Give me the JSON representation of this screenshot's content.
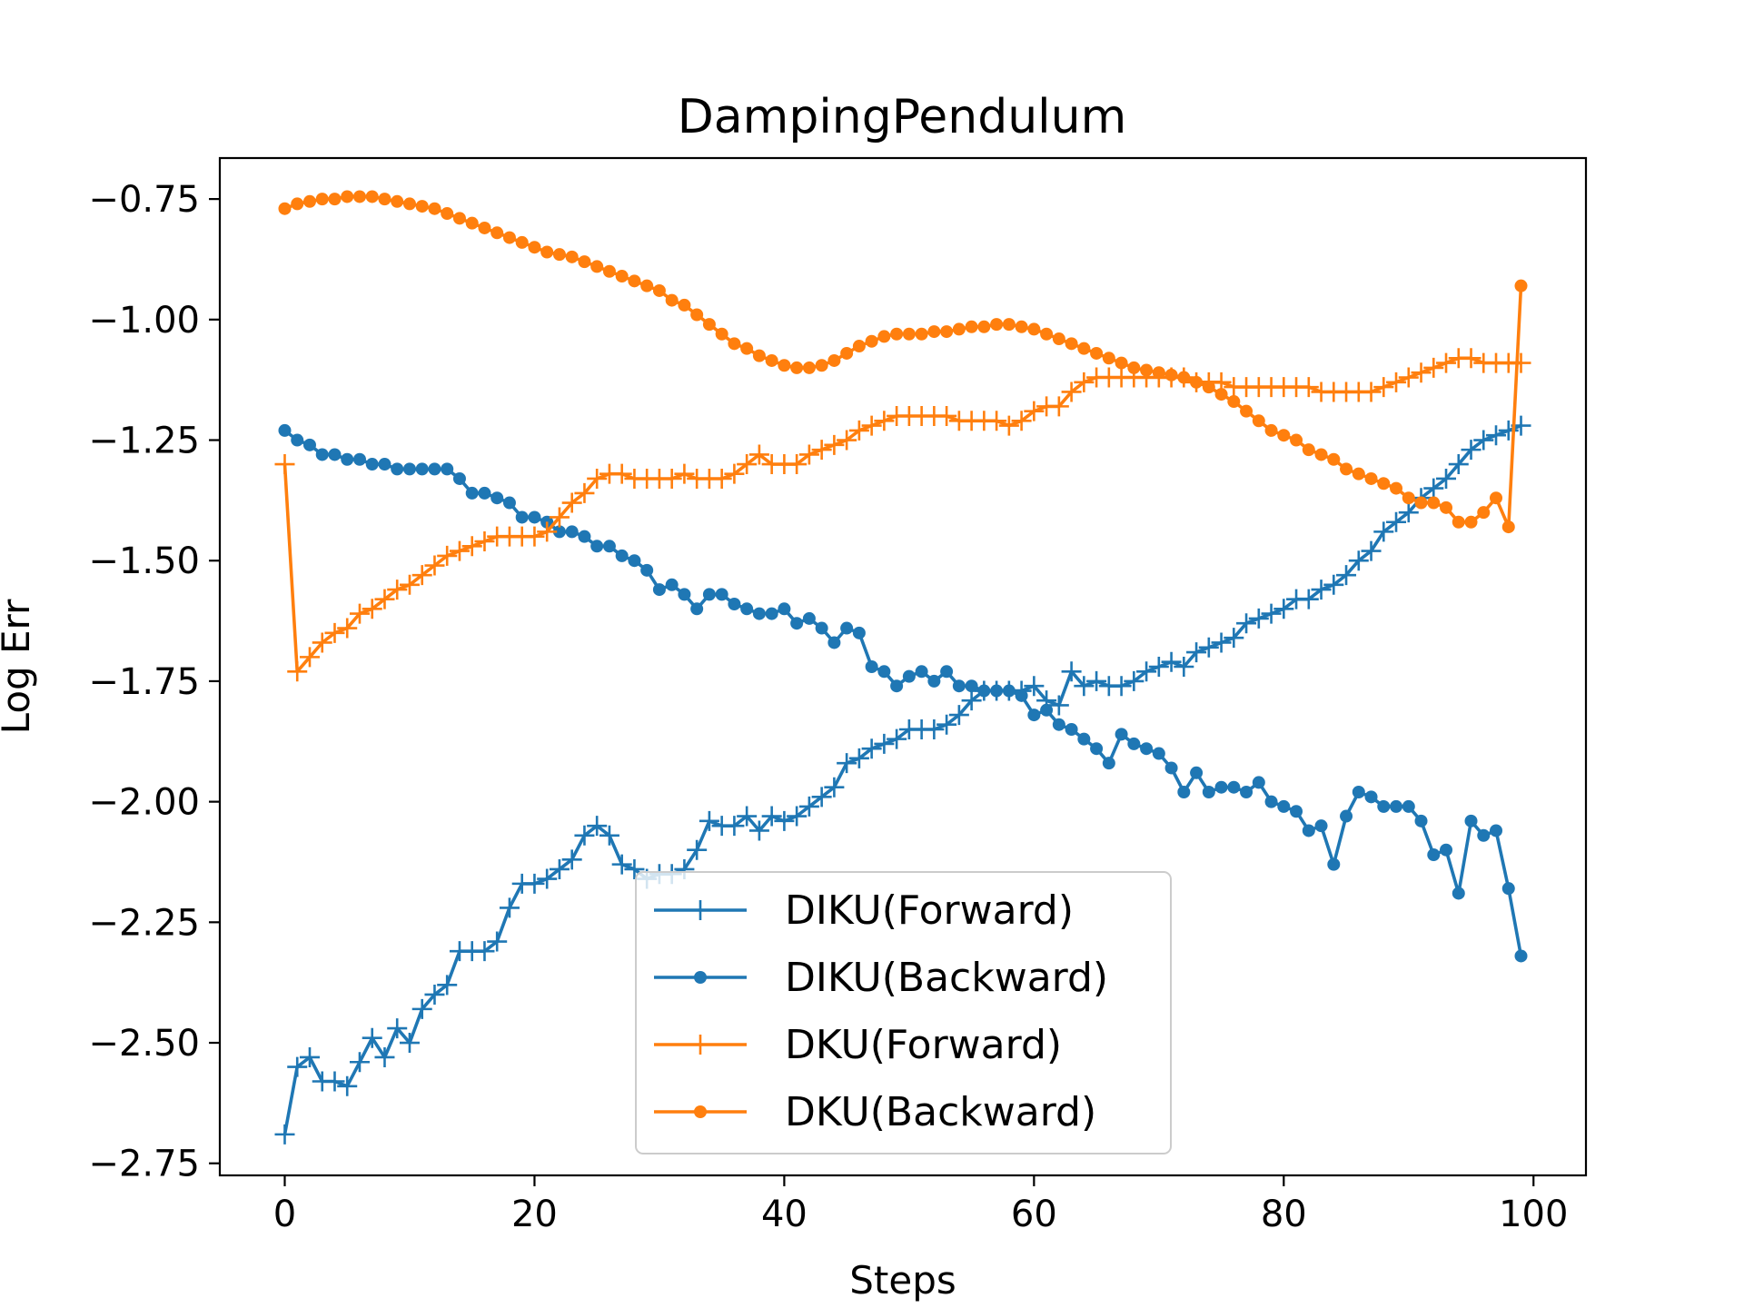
{
  "chart_data": {
    "type": "line",
    "title": "DampingPendulum",
    "xlabel": "Steps",
    "ylabel": "Log Err",
    "xlim": [
      -5.2,
      104.2
    ],
    "ylim": [
      -2.775,
      -0.665
    ],
    "xticks": [
      0,
      20,
      40,
      60,
      80,
      100
    ],
    "xtick_labels": [
      "0",
      "20",
      "40",
      "60",
      "80",
      "100"
    ],
    "yticks": [
      -2.75,
      -2.5,
      -2.25,
      -2.0,
      -1.75,
      -1.5,
      -1.25,
      -1.0,
      -0.75
    ],
    "ytick_labels": [
      "−2.75",
      "−2.50",
      "−2.25",
      "−2.00",
      "−1.75",
      "−1.50",
      "−1.25",
      "−1.00",
      "−0.75"
    ],
    "grid": false,
    "legend_position": "lower-center",
    "x": [
      0,
      1,
      2,
      3,
      4,
      5,
      6,
      7,
      8,
      9,
      10,
      11,
      12,
      13,
      14,
      15,
      16,
      17,
      18,
      19,
      20,
      21,
      22,
      23,
      24,
      25,
      26,
      27,
      28,
      29,
      30,
      31,
      32,
      33,
      34,
      35,
      36,
      37,
      38,
      39,
      40,
      41,
      42,
      43,
      44,
      45,
      46,
      47,
      48,
      49,
      50,
      51,
      52,
      53,
      54,
      55,
      56,
      57,
      58,
      59,
      60,
      61,
      62,
      63,
      64,
      65,
      66,
      67,
      68,
      69,
      70,
      71,
      72,
      73,
      74,
      75,
      76,
      77,
      78,
      79,
      80,
      81,
      82,
      83,
      84,
      85,
      86,
      87,
      88,
      89,
      90,
      91,
      92,
      93,
      94,
      95,
      96,
      97,
      98,
      99
    ],
    "series": [
      {
        "name": "DIKU(Forward)",
        "color": "#1f77b4",
        "marker": "plus",
        "values": [
          -2.69,
          -2.55,
          -2.53,
          -2.58,
          -2.58,
          -2.59,
          -2.54,
          -2.49,
          -2.53,
          -2.47,
          -2.5,
          -2.43,
          -2.4,
          -2.38,
          -2.31,
          -2.31,
          -2.31,
          -2.29,
          -2.22,
          -2.17,
          -2.17,
          -2.16,
          -2.14,
          -2.12,
          -2.07,
          -2.05,
          -2.07,
          -2.13,
          -2.14,
          -2.16,
          -2.15,
          -2.15,
          -2.14,
          -2.1,
          -2.04,
          -2.05,
          -2.05,
          -2.03,
          -2.06,
          -2.03,
          -2.04,
          -2.03,
          -2.01,
          -1.99,
          -1.97,
          -1.92,
          -1.91,
          -1.89,
          -1.88,
          -1.87,
          -1.85,
          -1.85,
          -1.85,
          -1.84,
          -1.82,
          -1.79,
          -1.77,
          -1.77,
          -1.77,
          -1.77,
          -1.76,
          -1.79,
          -1.8,
          -1.73,
          -1.76,
          -1.75,
          -1.76,
          -1.76,
          -1.75,
          -1.73,
          -1.72,
          -1.71,
          -1.72,
          -1.69,
          -1.68,
          -1.67,
          -1.66,
          -1.63,
          -1.62,
          -1.61,
          -1.6,
          -1.58,
          -1.58,
          -1.56,
          -1.55,
          -1.53,
          -1.5,
          -1.48,
          -1.44,
          -1.42,
          -1.4,
          -1.37,
          -1.35,
          -1.33,
          -1.3,
          -1.27,
          -1.25,
          -1.24,
          -1.23,
          -1.22
        ]
      },
      {
        "name": "DIKU(Backward)",
        "color": "#1f77b4",
        "marker": "dot",
        "values": [
          -1.23,
          -1.25,
          -1.26,
          -1.28,
          -1.28,
          -1.29,
          -1.29,
          -1.3,
          -1.3,
          -1.31,
          -1.31,
          -1.31,
          -1.31,
          -1.31,
          -1.33,
          -1.36,
          -1.36,
          -1.37,
          -1.38,
          -1.41,
          -1.41,
          -1.42,
          -1.44,
          -1.44,
          -1.45,
          -1.47,
          -1.47,
          -1.49,
          -1.5,
          -1.52,
          -1.56,
          -1.55,
          -1.57,
          -1.6,
          -1.57,
          -1.57,
          -1.59,
          -1.6,
          -1.61,
          -1.61,
          -1.6,
          -1.63,
          -1.62,
          -1.64,
          -1.67,
          -1.64,
          -1.65,
          -1.72,
          -1.73,
          -1.76,
          -1.74,
          -1.73,
          -1.75,
          -1.73,
          -1.76,
          -1.76,
          -1.77,
          -1.77,
          -1.77,
          -1.78,
          -1.82,
          -1.81,
          -1.84,
          -1.85,
          -1.87,
          -1.89,
          -1.92,
          -1.86,
          -1.88,
          -1.89,
          -1.9,
          -1.93,
          -1.98,
          -1.94,
          -1.98,
          -1.97,
          -1.97,
          -1.98,
          -1.96,
          -2.0,
          -2.01,
          -2.02,
          -2.06,
          -2.05,
          -2.13,
          -2.03,
          -1.98,
          -1.99,
          -2.01,
          -2.01,
          -2.01,
          -2.04,
          -2.11,
          -2.1,
          -2.19,
          -2.04,
          -2.07,
          -2.06,
          -2.18,
          -2.32
        ]
      },
      {
        "name": "DKU(Forward)",
        "color": "#ff7f0e",
        "marker": "plus",
        "values": [
          -1.3,
          -1.73,
          -1.7,
          -1.67,
          -1.65,
          -1.64,
          -1.61,
          -1.6,
          -1.58,
          -1.56,
          -1.55,
          -1.53,
          -1.51,
          -1.49,
          -1.48,
          -1.47,
          -1.46,
          -1.45,
          -1.45,
          -1.45,
          -1.45,
          -1.44,
          -1.41,
          -1.38,
          -1.36,
          -1.33,
          -1.32,
          -1.32,
          -1.33,
          -1.33,
          -1.33,
          -1.33,
          -1.32,
          -1.33,
          -1.33,
          -1.33,
          -1.32,
          -1.3,
          -1.28,
          -1.3,
          -1.3,
          -1.3,
          -1.28,
          -1.27,
          -1.26,
          -1.25,
          -1.23,
          -1.22,
          -1.21,
          -1.2,
          -1.2,
          -1.2,
          -1.2,
          -1.2,
          -1.21,
          -1.21,
          -1.21,
          -1.21,
          -1.22,
          -1.21,
          -1.19,
          -1.18,
          -1.18,
          -1.15,
          -1.13,
          -1.12,
          -1.12,
          -1.12,
          -1.12,
          -1.12,
          -1.12,
          -1.12,
          -1.12,
          -1.13,
          -1.13,
          -1.13,
          -1.14,
          -1.14,
          -1.14,
          -1.14,
          -1.14,
          -1.14,
          -1.14,
          -1.15,
          -1.15,
          -1.15,
          -1.15,
          -1.15,
          -1.14,
          -1.13,
          -1.12,
          -1.11,
          -1.1,
          -1.09,
          -1.08,
          -1.08,
          -1.09,
          -1.09,
          -1.09,
          -1.09
        ]
      },
      {
        "name": "DKU(Backward)",
        "color": "#ff7f0e",
        "marker": "dot",
        "values": [
          -0.77,
          -0.76,
          -0.755,
          -0.75,
          -0.75,
          -0.745,
          -0.745,
          -0.745,
          -0.75,
          -0.755,
          -0.76,
          -0.765,
          -0.77,
          -0.78,
          -0.79,
          -0.8,
          -0.81,
          -0.82,
          -0.83,
          -0.84,
          -0.85,
          -0.86,
          -0.865,
          -0.87,
          -0.88,
          -0.89,
          -0.9,
          -0.91,
          -0.92,
          -0.93,
          -0.94,
          -0.96,
          -0.97,
          -0.99,
          -1.01,
          -1.03,
          -1.05,
          -1.06,
          -1.075,
          -1.085,
          -1.095,
          -1.1,
          -1.1,
          -1.095,
          -1.085,
          -1.07,
          -1.055,
          -1.045,
          -1.035,
          -1.03,
          -1.03,
          -1.03,
          -1.025,
          -1.025,
          -1.02,
          -1.015,
          -1.015,
          -1.01,
          -1.01,
          -1.015,
          -1.02,
          -1.03,
          -1.04,
          -1.05,
          -1.06,
          -1.07,
          -1.08,
          -1.09,
          -1.1,
          -1.105,
          -1.11,
          -1.115,
          -1.12,
          -1.13,
          -1.14,
          -1.155,
          -1.17,
          -1.19,
          -1.21,
          -1.23,
          -1.24,
          -1.25,
          -1.27,
          -1.28,
          -1.29,
          -1.31,
          -1.32,
          -1.33,
          -1.34,
          -1.35,
          -1.37,
          -1.38,
          -1.38,
          -1.39,
          -1.42,
          -1.42,
          -1.4,
          -1.37,
          -1.43,
          -0.93
        ]
      }
    ]
  }
}
